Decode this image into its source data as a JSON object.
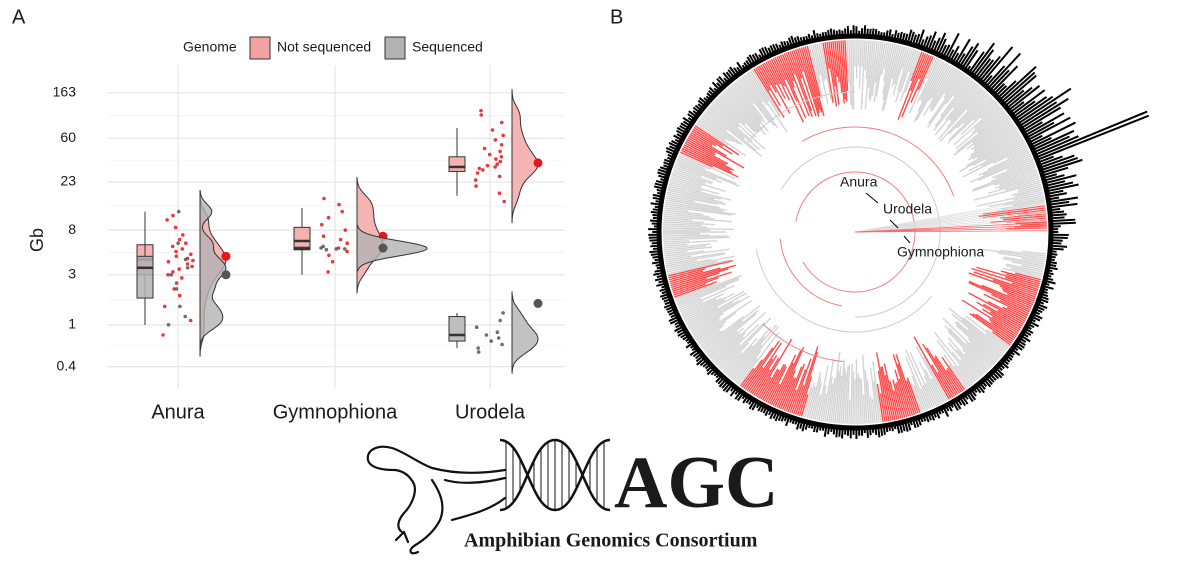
{
  "panel_labels": [
    "A",
    "B"
  ],
  "chart_data": {
    "type": "box",
    "y_label": "Gb",
    "legend_title": "Genome",
    "legend_position": "top",
    "log_scale": true,
    "grid": true,
    "categories": [
      "Anura",
      "Gymnophiona",
      "Urodela"
    ],
    "ylim": [
      0.25,
      300
    ],
    "yticks": [
      0.4,
      1,
      3,
      8,
      23,
      60,
      163
    ],
    "series": [
      {
        "name": "Not sequenced",
        "color": "#f4a3a3",
        "point_color": "#e8151b",
        "boxes": [
          {
            "min": 1,
            "q1": 3,
            "median": 4.2,
            "q3": 5.8,
            "max": 11
          },
          {
            "min": 3,
            "q1": 5.3,
            "median": 6.3,
            "q3": 8.5,
            "max": 13
          },
          {
            "min": 17,
            "q1": 29,
            "median": 32,
            "q3": 40,
            "max": 75
          }
        ],
        "means": [
          4.5,
          7,
          35
        ],
        "points": [
          [
            0.8,
            1.1,
            1.5,
            1.9,
            2.2,
            2.5,
            2.8,
            3,
            3.2,
            3.4,
            3.6,
            3.8,
            4,
            4.1,
            4.3,
            4.5,
            4.7,
            5,
            5.3,
            5.6,
            6,
            6.5,
            7.2,
            8.5,
            10,
            11
          ],
          [
            3.2,
            4,
            4.6,
            5,
            5.4,
            6,
            6.5,
            7,
            8,
            9,
            10.5,
            12,
            14,
            16
          ],
          [
            15,
            18,
            21,
            24,
            26,
            28,
            30,
            31,
            32,
            33,
            34,
            36,
            38,
            40,
            42,
            45,
            48,
            52,
            58,
            64,
            72,
            85,
            100,
            110
          ]
        ]
      },
      {
        "name": "Sequenced",
        "color": "#b3b3b3",
        "point_color": "#555555",
        "boxes": [
          {
            "min": 1,
            "q1": 1.8,
            "median": 3.5,
            "q3": 4.5,
            "max": 12
          },
          {
            "min": 5.2,
            "q1": 5.2,
            "median": 5.3,
            "q3": 5.5,
            "max": 5.6
          },
          {
            "min": 0.6,
            "q1": 0.7,
            "median": 0.8,
            "q3": 1.2,
            "max": 1.3
          }
        ],
        "means": [
          3,
          5.4,
          1.6
        ],
        "points": [
          [
            1,
            1.2,
            1.5,
            2.2,
            3,
            3.5,
            4.2,
            6,
            12
          ],
          [
            5.2,
            5.3,
            5.3,
            5.4,
            5.6
          ],
          [
            0.55,
            0.6,
            0.65,
            0.7,
            0.75,
            0.8,
            0.85,
            0.95,
            1.1,
            1.3
          ]
        ]
      }
    ]
  },
  "tree": {
    "labels": [
      "Anura",
      "Urodela",
      "Gymnophiona"
    ]
  },
  "logo": {
    "title": "AGC",
    "subtitle": "Amphibian Genomics Consortium"
  }
}
